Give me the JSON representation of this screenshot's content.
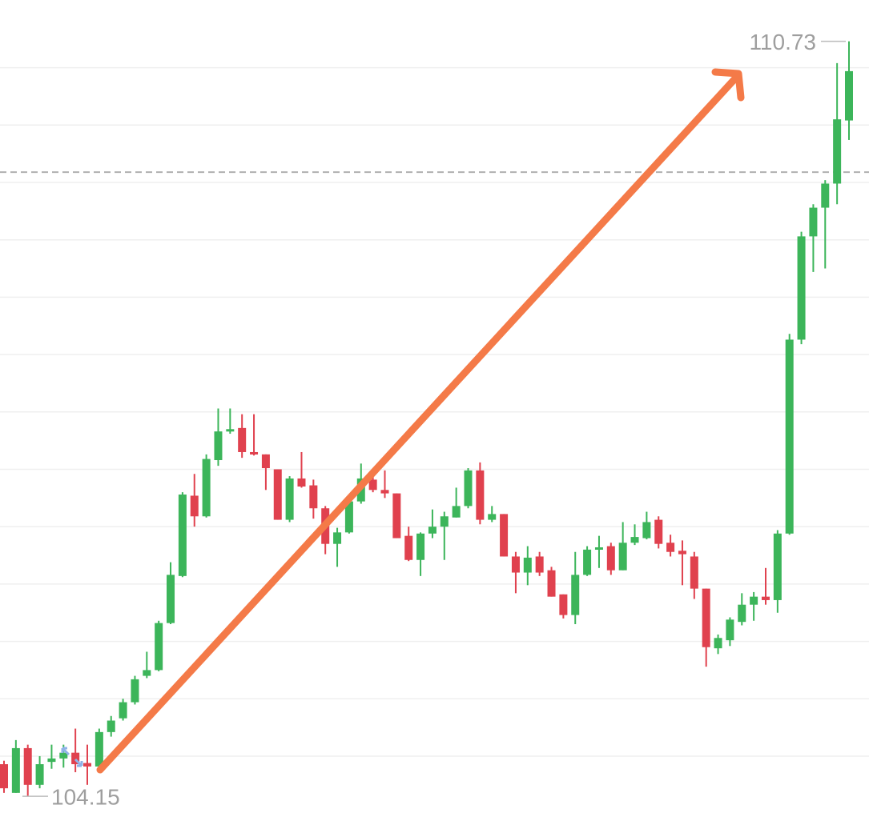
{
  "chart_data": {
    "type": "candlestick",
    "ylim": [
      103.9,
      111.09
    ],
    "yticks": [
      104.5,
      105,
      105.5,
      106,
      106.5,
      107,
      107.5,
      108,
      108.5,
      109,
      109.5,
      110,
      110.5
    ],
    "grid": true,
    "reference_line": 109.59,
    "up_color": "#3cb55a",
    "down_color": "#e0414e",
    "max_label": 110.73,
    "min_label": 104.15,
    "series": {
      "open": [
        104.43,
        104.18,
        104.57,
        104.25,
        104.45,
        104.48,
        104.53,
        104.44,
        104.41,
        104.71,
        104.83,
        104.97,
        105.2,
        105.25,
        105.66,
        106.07,
        106.77,
        106.59,
        107.08,
        107.33,
        107.36,
        107.15,
        107.13,
        107.0,
        106.56,
        106.92,
        106.86,
        106.66,
        106.35,
        106.45,
        106.72,
        106.91,
        106.82,
        106.79,
        106.42,
        106.21,
        106.44,
        106.5,
        106.58,
        106.68,
        106.99,
        106.56,
        106.61,
        106.24,
        106.1,
        106.24,
        106.12,
        105.91,
        105.73,
        106.08,
        106.3,
        106.33,
        106.12,
        106.36,
        106.4,
        106.56,
        106.36,
        106.29,
        106.24,
        105.96,
        105.44,
        105.51,
        105.67,
        105.82,
        105.89,
        105.86,
        106.44,
        108.13,
        109.03,
        109.28,
        109.49,
        110.04
      ],
      "high": [
        104.46,
        104.64,
        104.6,
        104.5,
        104.6,
        104.6,
        104.74,
        104.6,
        104.74,
        104.85,
        105.0,
        105.2,
        105.41,
        105.68,
        106.19,
        106.8,
        106.96,
        107.13,
        107.53,
        107.53,
        107.48,
        107.48,
        107.13,
        107.0,
        106.94,
        107.15,
        106.91,
        106.68,
        106.49,
        106.77,
        107.05,
        106.98,
        106.99,
        106.79,
        106.5,
        106.45,
        106.65,
        106.63,
        106.84,
        107.01,
        107.06,
        106.68,
        106.61,
        106.28,
        106.33,
        106.28,
        106.15,
        105.91,
        106.28,
        106.33,
        106.42,
        106.36,
        106.54,
        106.52,
        106.63,
        106.59,
        106.43,
        106.38,
        106.28,
        105.96,
        105.56,
        105.71,
        105.92,
        105.93,
        106.14,
        106.47,
        108.18,
        109.07,
        109.31,
        109.52,
        110.54,
        110.73
      ],
      "low": [
        104.18,
        104.18,
        104.15,
        104.22,
        104.39,
        104.4,
        104.36,
        104.25,
        104.36,
        104.67,
        104.81,
        104.95,
        105.18,
        105.24,
        105.65,
        106.06,
        106.5,
        106.58,
        107.03,
        107.31,
        107.1,
        107.12,
        106.82,
        106.56,
        106.54,
        106.84,
        106.57,
        106.26,
        106.15,
        106.44,
        106.7,
        106.8,
        106.75,
        106.4,
        106.2,
        106.07,
        106.4,
        106.21,
        106.58,
        106.66,
        106.52,
        106.54,
        106.24,
        105.92,
        105.99,
        106.07,
        105.89,
        105.7,
        105.65,
        106.07,
        106.14,
        106.08,
        106.12,
        106.34,
        106.39,
        106.31,
        106.24,
        105.99,
        105.87,
        105.28,
        105.39,
        105.46,
        105.64,
        105.68,
        105.82,
        105.75,
        106.43,
        108.09,
        108.72,
        108.75,
        109.31,
        109.87
      ],
      "close": [
        104.22,
        104.57,
        104.25,
        104.43,
        104.48,
        104.53,
        104.43,
        104.41,
        104.71,
        104.81,
        104.97,
        105.17,
        105.25,
        105.66,
        106.08,
        106.78,
        106.59,
        107.09,
        107.33,
        107.35,
        107.15,
        107.13,
        107.01,
        106.56,
        106.92,
        106.85,
        106.66,
        106.35,
        106.45,
        106.72,
        106.92,
        106.82,
        106.79,
        106.4,
        106.21,
        106.44,
        106.5,
        106.59,
        106.68,
        106.99,
        106.56,
        106.61,
        106.24,
        106.1,
        106.23,
        106.1,
        105.89,
        105.73,
        106.08,
        106.3,
        106.32,
        106.12,
        106.36,
        106.41,
        106.54,
        106.35,
        106.28,
        106.26,
        105.96,
        105.45,
        105.53,
        105.69,
        105.82,
        105.89,
        105.86,
        106.44,
        108.13,
        109.03,
        109.28,
        109.49,
        110.05,
        110.47
      ]
    }
  }
}
